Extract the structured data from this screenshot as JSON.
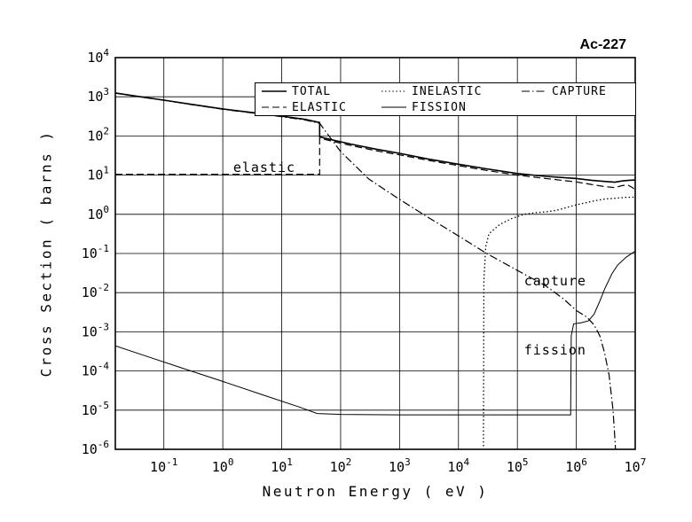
{
  "chart_data": {
    "type": "line",
    "title": "Ac-227",
    "xlabel": "Neutron Energy ( eV )",
    "ylabel": "Cross Section ( barns )",
    "x_scale": "log",
    "y_scale": "log",
    "x_range_eV": [
      0.015,
      10000000
    ],
    "y_range_barns": [
      1e-06,
      10000
    ],
    "x_tick_exponents": [
      -1,
      0,
      1,
      2,
      3,
      4,
      5,
      6,
      7
    ],
    "y_tick_exponents": [
      4,
      3,
      2,
      1,
      0,
      -1,
      -2,
      -3,
      -4,
      -5,
      -6
    ],
    "grid": true,
    "legend": {
      "position": "top-inside",
      "items": [
        {
          "label": "TOTAL",
          "style": "solid"
        },
        {
          "label": "INELASTIC",
          "style": "dotted"
        },
        {
          "label": "CAPTURE",
          "style": "dashdot"
        },
        {
          "label": "ELASTIC",
          "style": "dashed"
        },
        {
          "label": "FISSION",
          "style": "solid-thin"
        }
      ]
    },
    "annotations": [
      {
        "text": "elastic",
        "x_eV": 1.5,
        "y_barns": 16
      },
      {
        "text": "capture",
        "x_eV": 130000,
        "y_barns": 0.02
      },
      {
        "text": "fission",
        "x_eV": 130000,
        "y_barns": 0.00034
      }
    ],
    "series": [
      {
        "name": "TOTAL",
        "style": "solid",
        "width": 1.6,
        "points": [
          [
            0.015,
            1250
          ],
          [
            0.04,
            1000
          ],
          [
            0.1,
            820
          ],
          [
            0.3,
            640
          ],
          [
            1,
            490
          ],
          [
            3,
            400
          ],
          [
            10,
            320
          ],
          [
            25,
            265
          ],
          [
            44,
            220
          ],
          [
            44,
            95
          ],
          [
            70,
            80
          ],
          [
            150,
            62
          ],
          [
            400,
            46
          ],
          [
            1000,
            36
          ],
          [
            3000,
            26
          ],
          [
            10000,
            19
          ],
          [
            30000,
            14.5
          ],
          [
            100000,
            11
          ],
          [
            300000,
            9.3
          ],
          [
            700000,
            8.5
          ],
          [
            1000000,
            8.2
          ],
          [
            1800000,
            7.4
          ],
          [
            3000000,
            6.9
          ],
          [
            4500000,
            6.6
          ],
          [
            6000000,
            7.1
          ],
          [
            7500000,
            7.3
          ],
          [
            10000000,
            7.5
          ]
        ]
      },
      {
        "name": "ELASTIC",
        "style": "dashed",
        "width": 1.2,
        "points": [
          [
            0.015,
            10.5
          ],
          [
            44,
            10.5
          ],
          [
            44,
            88
          ],
          [
            70,
            74
          ],
          [
            150,
            57
          ],
          [
            400,
            42
          ],
          [
            1000,
            33
          ],
          [
            3000,
            24
          ],
          [
            10000,
            17.5
          ],
          [
            30000,
            13.2
          ],
          [
            100000,
            10
          ],
          [
            300000,
            8.2
          ],
          [
            1000000,
            6.7
          ],
          [
            1800000,
            5.8
          ],
          [
            3000000,
            5.1
          ],
          [
            4500000,
            4.8
          ],
          [
            6000000,
            5.4
          ],
          [
            7500000,
            5.6
          ],
          [
            9000000,
            4.8
          ],
          [
            10000000,
            4.1
          ]
        ]
      },
      {
        "name": "INELASTIC",
        "style": "dotted",
        "width": 1.3,
        "points": [
          [
            26500,
            1.2e-06
          ],
          [
            27000,
            0.02
          ],
          [
            29000,
            0.15
          ],
          [
            33000,
            0.32
          ],
          [
            50000,
            0.55
          ],
          [
            80000,
            0.78
          ],
          [
            130000,
            1.0
          ],
          [
            200000,
            1.1
          ],
          [
            300000,
            1.15
          ],
          [
            450000,
            1.25
          ],
          [
            700000,
            1.5
          ],
          [
            1000000,
            1.75
          ],
          [
            1500000,
            2.0
          ],
          [
            2000000,
            2.2
          ],
          [
            3000000,
            2.45
          ],
          [
            5000000,
            2.6
          ],
          [
            7000000,
            2.7
          ],
          [
            10000000,
            2.75
          ]
        ]
      },
      {
        "name": "FISSION",
        "style": "solid-thin",
        "width": 1.0,
        "points": [
          [
            0.015,
            0.00044
          ],
          [
            0.05,
            0.00024
          ],
          [
            0.2,
            0.00012
          ],
          [
            1,
            5.4e-05
          ],
          [
            5,
            2.4e-05
          ],
          [
            20,
            1.2e-05
          ],
          [
            40,
            8.2e-06
          ],
          [
            100,
            7.8e-06
          ],
          [
            1000,
            7.6e-06
          ],
          [
            10000,
            7.6e-06
          ],
          [
            100000,
            7.6e-06
          ],
          [
            800000,
            7.6e-06
          ],
          [
            820000,
            0.0008
          ],
          [
            900000,
            0.0016
          ],
          [
            1200000,
            0.0017
          ],
          [
            1600000,
            0.0019
          ],
          [
            2000000,
            0.0028
          ],
          [
            2500000,
            0.006
          ],
          [
            3000000,
            0.012
          ],
          [
            4000000,
            0.03
          ],
          [
            5000000,
            0.05
          ],
          [
            7000000,
            0.08
          ],
          [
            10000000,
            0.115
          ]
        ]
      },
      {
        "name": "CAPTURE",
        "style": "dashdot",
        "width": 1.2,
        "points": [
          [
            0.015,
            1240
          ],
          [
            0.04,
            990
          ],
          [
            0.1,
            810
          ],
          [
            0.3,
            630
          ],
          [
            1,
            480
          ],
          [
            3,
            390
          ],
          [
            10,
            310
          ],
          [
            25,
            255
          ],
          [
            44,
            210
          ],
          [
            100,
            40
          ],
          [
            300,
            8
          ],
          [
            1000,
            2.4
          ],
          [
            3000,
            0.85
          ],
          [
            10000,
            0.28
          ],
          [
            30000,
            0.1
          ],
          [
            100000,
            0.037
          ],
          [
            300000,
            0.015
          ],
          [
            600000,
            0.007
          ],
          [
            1000000,
            0.0035
          ],
          [
            1500000,
            0.0024
          ],
          [
            2000000,
            0.0015
          ],
          [
            2500000,
            0.0008
          ],
          [
            3000000,
            0.0003
          ],
          [
            3600000,
            8e-05
          ],
          [
            4200000,
            1e-05
          ],
          [
            4600000,
            1.2e-06
          ],
          [
            4700000,
            4e-07
          ]
        ]
      }
    ]
  }
}
